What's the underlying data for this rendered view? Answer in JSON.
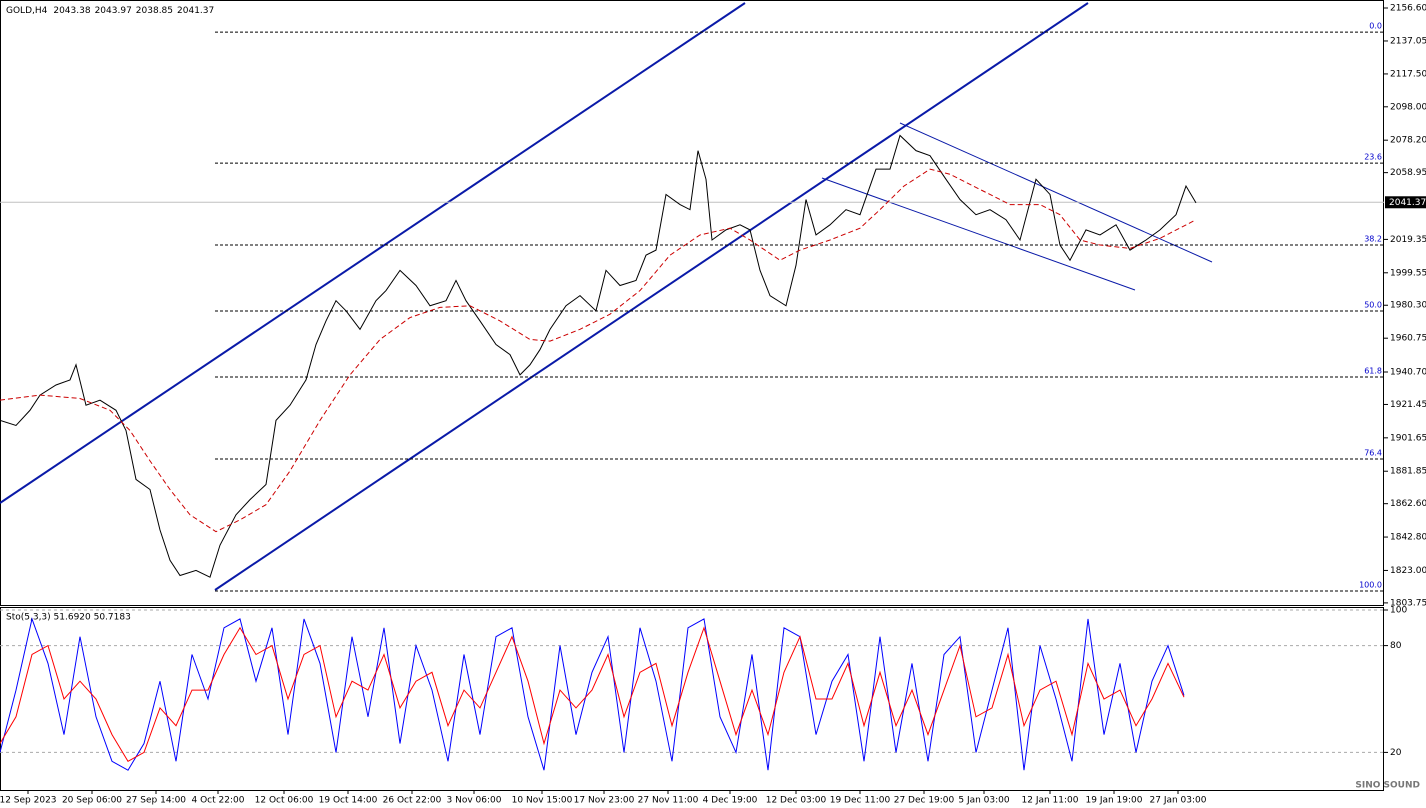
{
  "chart_data": [
    {
      "type": "line",
      "title": "GOLD,H4",
      "ohlc": [
        2043.38,
        2043.97,
        2038.85,
        2041.37
      ],
      "xlim": [
        0,
        692
      ],
      "ylim": [
        1802.5,
        2161.35
      ],
      "yticks": [
        {
          "value": 2156.6,
          "label": "2156.60"
        },
        2137.05,
        {
          "value": 2117.5,
          "label": "2117.50"
        },
        {
          "value": 2098,
          "label": "2098.00"
        },
        {
          "value": 2078.2,
          "label": "2078.20"
        },
        2058.95,
        2019.35,
        1999.55,
        {
          "value": 1980.3,
          "label": "1980.30"
        },
        1960.75,
        {
          "value": 1940.7,
          "label": "1940.70"
        },
        1921.45,
        1901.65,
        1881.85,
        {
          "value": 1862.6,
          "label": "1862.60"
        },
        {
          "value": 1842.8,
          "label": "1842.80"
        },
        {
          "value": 1823,
          "label": "1823.00"
        },
        1803.75
      ],
      "xticks": [
        {
          "value": 14,
          "label": "12 Sep 2023"
        },
        {
          "value": 46,
          "label": "20 Sep 06:00"
        },
        {
          "value": 78,
          "label": "27 Sep 14:00"
        },
        {
          "value": 109,
          "label": "4 Oct 22:00"
        },
        {
          "value": 142,
          "label": "12 Oct 06:00"
        },
        {
          "value": 174,
          "label": "19 Oct 14:00"
        },
        {
          "value": 206,
          "label": "26 Oct 22:00"
        },
        {
          "value": 237,
          "label": "3 Nov 06:00"
        },
        {
          "value": 271,
          "label": "10 Nov 15:00"
        },
        {
          "value": 302,
          "label": "17 Nov 23:00"
        },
        {
          "value": 334,
          "label": "27 Nov 11:00"
        },
        {
          "value": 365,
          "label": "4 Dec 19:00"
        },
        {
          "value": 398,
          "label": "12 Dec 03:00"
        },
        {
          "value": 430,
          "label": "19 Dec 11:00"
        },
        {
          "value": 462,
          "label": "27 Dec 19:00"
        },
        {
          "value": 492,
          "label": "5 Jan 03:00"
        },
        {
          "value": 525,
          "label": "12 Jan 11:00"
        },
        {
          "value": 557,
          "label": "19 Jan 19:00"
        },
        {
          "value": 589,
          "label": "27 Jan 03:00"
        }
      ],
      "last_price": 2041.37,
      "fib_levels": [
        {
          "label": "0.0",
          "value": 2142.3
        },
        {
          "label": "23.6",
          "value": 2064.6
        },
        {
          "label": "38.2",
          "value": 2016
        },
        {
          "label": "50.0",
          "value": 1976.9
        },
        {
          "label": "61.8",
          "value": 1937.7
        },
        {
          "label": "76.4",
          "value": 1889.1
        },
        {
          "label": "100.0",
          "value": 1810.8
        }
      ],
      "series": [
        {
          "color": "#000000",
          "dashed": false,
          "x": [
            0,
            8,
            15,
            20,
            28,
            35,
            38,
            43,
            50,
            58,
            63,
            68,
            75,
            80,
            85,
            90,
            98,
            105,
            110,
            118,
            125,
            133,
            138,
            145,
            153,
            158,
            163,
            168,
            173,
            180,
            188,
            193,
            200,
            208,
            215,
            223,
            228,
            233,
            240,
            248,
            255,
            260,
            265,
            270,
            275,
            283,
            290,
            298,
            303,
            310,
            318,
            323,
            328,
            333,
            340,
            345,
            349,
            353,
            356,
            363,
            370,
            375,
            380,
            385,
            393,
            398,
            403,
            408,
            415,
            423,
            430,
            438,
            445,
            450,
            458,
            465,
            473,
            480,
            488,
            495,
            503,
            510,
            518,
            525,
            530,
            535,
            543,
            550,
            558,
            565,
            573,
            580,
            588,
            593,
            598
          ],
          "values": [
            1912,
            1909,
            1918,
            1927,
            1933,
            1936,
            1945,
            1921,
            1924,
            1918,
            1906,
            1877,
            1871,
            1847,
            1829,
            1820,
            1823,
            1819,
            1838,
            1856,
            1865,
            1874,
            1912,
            1921,
            1936,
            1957,
            1971,
            1983,
            1977,
            1966,
            1983,
            1989,
            2001,
            1992,
            1980,
            1983,
            1995,
            1983,
            1971,
            1957,
            1951,
            1939,
            1945,
            1954,
            1966,
            1980,
            1986,
            1977,
            2001,
            1992,
            1995,
            2010,
            2013,
            2046,
            2040,
            2037,
            2072,
            2055,
            2019,
            2025,
            2028,
            2025,
            2001,
            1986,
            1980,
            2004,
            2043,
            2022,
            2028,
            2037,
            2034,
            2061,
            2061,
            2081,
            2072,
            2069,
            2055,
            2043,
            2034,
            2037,
            2031,
            2019,
            2055,
            2046,
            2016,
            2007,
            2025,
            2022,
            2028,
            2013,
            2019,
            2025,
            2034,
            2051,
            2041
          ]
        },
        {
          "color": "#cc0000",
          "dashed": true,
          "x": [
            0,
            20,
            40,
            55,
            65,
            75,
            85,
            95,
            108,
            120,
            133,
            145,
            160,
            175,
            190,
            205,
            220,
            235,
            250,
            265,
            275,
            290,
            305,
            320,
            335,
            350,
            365,
            375,
            390,
            400,
            415,
            430,
            440,
            452,
            465,
            475,
            490,
            505,
            520,
            530,
            540,
            550,
            565,
            580,
            598
          ],
          "values": [
            1924,
            1927,
            1925,
            1918,
            1906,
            1888,
            1871,
            1856,
            1846,
            1853,
            1862,
            1882,
            1912,
            1939,
            1960,
            1973,
            1979,
            1980,
            1971,
            1960,
            1959,
            1966,
            1975,
            1989,
            2010,
            2022,
            2026,
            2019,
            2007,
            2013,
            2019,
            2026,
            2037,
            2051,
            2061,
            2058,
            2049,
            2040,
            2040,
            2034,
            2019,
            2016,
            2014,
            2020,
            2031
          ]
        }
      ]
    },
    {
      "type": "line",
      "title": "Sto(5,3,3) 51.6920 50.7183",
      "xlim": [
        0,
        692
      ],
      "ylim": [
        0,
        100
      ],
      "yticks": [
        100,
        80,
        20
      ],
      "grid": true,
      "x": [
        0,
        8,
        16,
        24,
        32,
        40,
        48,
        56,
        64,
        72,
        80,
        88,
        96,
        104,
        112,
        120,
        128,
        136,
        144,
        152,
        160,
        168,
        176,
        184,
        192,
        200,
        208,
        216,
        224,
        232,
        240,
        248,
        256,
        264,
        272,
        280,
        288,
        296,
        304,
        312,
        320,
        328,
        336,
        344,
        352,
        360,
        368,
        376,
        384,
        392,
        400,
        408,
        416,
        424,
        432,
        440,
        448,
        456,
        464,
        472,
        480,
        488,
        496,
        504,
        512,
        520,
        528,
        536,
        544,
        552,
        560,
        568,
        576,
        584,
        592
      ],
      "series": [
        {
          "color": "#0000ff",
          "values": [
            20,
            55,
            95,
            70,
            30,
            85,
            40,
            15,
            10,
            25,
            60,
            15,
            75,
            50,
            90,
            95,
            60,
            90,
            30,
            95,
            70,
            20,
            85,
            40,
            90,
            25,
            80,
            55,
            15,
            75,
            30,
            85,
            90,
            40,
            10,
            80,
            30,
            65,
            85,
            20,
            90,
            60,
            15,
            90,
            95,
            40,
            20,
            75,
            10,
            90,
            85,
            30,
            60,
            75,
            15,
            85,
            20,
            70,
            15,
            75,
            85,
            20,
            55,
            90,
            10,
            80,
            50,
            15,
            95,
            30,
            70,
            20,
            60,
            80,
            52
          ]
        },
        {
          "color": "#ff0000",
          "values": [
            25,
            40,
            75,
            80,
            50,
            60,
            50,
            30,
            15,
            20,
            45,
            35,
            55,
            55,
            75,
            90,
            75,
            80,
            50,
            75,
            80,
            40,
            60,
            55,
            75,
            45,
            60,
            65,
            35,
            55,
            45,
            65,
            85,
            60,
            25,
            55,
            45,
            55,
            75,
            40,
            65,
            70,
            35,
            65,
            90,
            60,
            30,
            55,
            30,
            65,
            85,
            50,
            50,
            70,
            35,
            65,
            35,
            55,
            30,
            55,
            80,
            40,
            45,
            75,
            35,
            55,
            60,
            30,
            70,
            50,
            55,
            35,
            50,
            70,
            51
          ]
        }
      ]
    }
  ],
  "watermark": "SINO SOUND"
}
